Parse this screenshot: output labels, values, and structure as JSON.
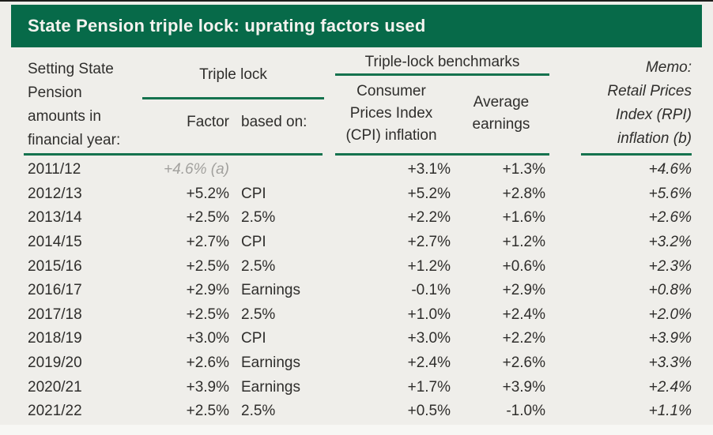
{
  "title": "State Pension triple lock: uprating factors used",
  "colors": {
    "brand_green": "#076a49",
    "rule_green": "#15724e",
    "background": "#efeeea",
    "text": "#2f2e2c",
    "muted_note": "#a2a19e"
  },
  "header": {
    "row_axis_label": "Setting State\nPension\namounts in\nfinancial year:",
    "triple_lock_group": "Triple lock",
    "factor_label": "Factor",
    "based_on_label": "based on:",
    "benchmarks_group": "Triple-lock benchmarks",
    "cpi_label": "Consumer\nPrices Index\n(CPI) inflation",
    "earnings_label": "Average\nearnings",
    "memo_label": "Memo:\nRetail Prices\nIndex (RPI)\ninflation (b)"
  },
  "chart_data": {
    "type": "table",
    "title": "State Pension triple lock: uprating factors used",
    "columns": [
      "Setting State Pension amounts in financial year:",
      "Triple lock Factor",
      "Triple lock based on:",
      "Consumer Prices Index (CPI) inflation",
      "Average earnings",
      "Memo: Retail Prices Index (RPI) inflation (b)"
    ],
    "rows": [
      {
        "year": "2011/12",
        "factor": "+4.6% (a)",
        "based_on": "",
        "cpi": "+3.1%",
        "earnings": "+1.3%",
        "rpi": "+4.6%"
      },
      {
        "year": "2012/13",
        "factor": "+5.2%",
        "based_on": "CPI",
        "cpi": "+5.2%",
        "earnings": "+2.8%",
        "rpi": "+5.6%"
      },
      {
        "year": "2013/14",
        "factor": "+2.5%",
        "based_on": "2.5%",
        "cpi": "+2.2%",
        "earnings": "+1.6%",
        "rpi": "+2.6%"
      },
      {
        "year": "2014/15",
        "factor": "+2.7%",
        "based_on": "CPI",
        "cpi": "+2.7%",
        "earnings": "+1.2%",
        "rpi": "+3.2%"
      },
      {
        "year": "2015/16",
        "factor": "+2.5%",
        "based_on": "2.5%",
        "cpi": "+1.2%",
        "earnings": "+0.6%",
        "rpi": "+2.3%"
      },
      {
        "year": "2016/17",
        "factor": "+2.9%",
        "based_on": "Earnings",
        "cpi": "-0.1%",
        "earnings": "+2.9%",
        "rpi": "+0.8%"
      },
      {
        "year": "2017/18",
        "factor": "+2.5%",
        "based_on": "2.5%",
        "cpi": "+1.0%",
        "earnings": "+2.4%",
        "rpi": "+2.0%"
      },
      {
        "year": "2018/19",
        "factor": "+3.0%",
        "based_on": "CPI",
        "cpi": "+3.0%",
        "earnings": "+2.2%",
        "rpi": "+3.9%"
      },
      {
        "year": "2019/20",
        "factor": "+2.6%",
        "based_on": "Earnings",
        "cpi": "+2.4%",
        "earnings": "+2.6%",
        "rpi": "+3.3%"
      },
      {
        "year": "2020/21",
        "factor": "+3.9%",
        "based_on": "Earnings",
        "cpi": "+1.7%",
        "earnings": "+3.9%",
        "rpi": "+2.4%"
      },
      {
        "year": "2021/22",
        "factor": "+2.5%",
        "based_on": "2.5%",
        "cpi": "+0.5%",
        "earnings": "-1.0%",
        "rpi": "+1.1%"
      }
    ]
  }
}
